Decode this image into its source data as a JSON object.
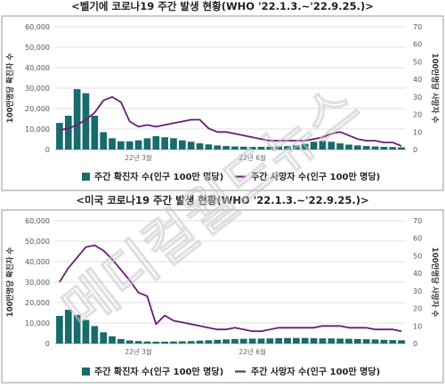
{
  "watermark": "메디컬월드뉴스",
  "chart_data": [
    {
      "type": "bar",
      "title": "<벨기에 코로나19 주간 발생 현황(WHO '22.1.3.~'22.9.25.)>",
      "ylabel": "100만명당 확진자 수",
      "y2label": "100만명당 사망자 수",
      "ylim": [
        0,
        60000
      ],
      "y2lim": [
        0,
        70
      ],
      "yticks": [
        "0",
        "10,000",
        "20,000",
        "30,000",
        "40,000",
        "50,000",
        "60,000"
      ],
      "y2ticks": [
        "0",
        "10",
        "20",
        "30",
        "40",
        "50",
        "60",
        "70"
      ],
      "xticks": [
        {
          "i": 9,
          "label": "22년 3월"
        },
        {
          "i": 22,
          "label": "22년 6월"
        }
      ],
      "grid": true,
      "legend_position": "bottom",
      "series": [
        {
          "name": "주간 확진자 수(인구 100만 명당)",
          "type": "bar",
          "color": "#1a6b6b",
          "values": [
            13000,
            16500,
            29500,
            27500,
            16500,
            8500,
            5500,
            4000,
            4000,
            4500,
            5500,
            6500,
            6000,
            5500,
            4500,
            3800,
            3000,
            2500,
            2000,
            1700,
            1500,
            1400,
            1300,
            1300,
            1400,
            1500,
            1700,
            2000,
            2800,
            3800,
            4200,
            3800,
            3000,
            2400,
            2000,
            1700,
            1500,
            1300,
            1200,
            1100
          ]
        },
        {
          "name": "주간 사망자 수(인구 100만 명당)",
          "type": "line",
          "color": "#6a1b7a",
          "values": [
            11,
            12,
            14,
            17,
            21,
            28,
            30,
            27,
            16,
            13,
            14,
            13,
            14,
            15,
            16,
            17,
            17,
            12,
            10,
            10,
            9,
            8,
            7,
            6,
            5,
            5,
            5,
            5,
            5,
            6,
            7,
            9,
            10,
            8,
            6,
            5,
            5,
            4,
            4,
            2
          ]
        }
      ]
    },
    {
      "type": "bar",
      "title": "<미국 코로나19 주간 발생 현황(WHO '22.1.3.~'22.9.25.)>",
      "ylabel": "100만명당 확진자 수",
      "y2label": "100만명당 사망자 수",
      "ylim": [
        0,
        60000
      ],
      "y2lim": [
        0,
        70
      ],
      "yticks": [
        "0",
        "10,000",
        "20,000",
        "30,000",
        "40,000",
        "50,000",
        "60,000"
      ],
      "y2ticks": [
        "0",
        "10",
        "20",
        "30",
        "40",
        "50",
        "60",
        "70"
      ],
      "xticks": [
        {
          "i": 9,
          "label": "22년 3월"
        },
        {
          "i": 22,
          "label": "22년 6월"
        }
      ],
      "grid": true,
      "legend_position": "bottom",
      "series": [
        {
          "name": "주간 확진자 수(인구 100만 명당)",
          "type": "bar",
          "color": "#1a6b6b",
          "values": [
            13500,
            16500,
            14000,
            11500,
            8500,
            5500,
            3500,
            2200,
            1500,
            1200,
            1000,
            900,
            900,
            1000,
            1100,
            1200,
            1400,
            1600,
            1800,
            2000,
            2200,
            2300,
            2400,
            2400,
            2500,
            2600,
            2700,
            2700,
            2700,
            2600,
            2500,
            2500,
            2400,
            2300,
            2200,
            2100,
            2000,
            1800,
            1700,
            1600
          ]
        },
        {
          "name": "주간 사망자 수(인구 100만 명당)",
          "type": "line",
          "color": "#6a1b7a",
          "values": [
            35,
            43,
            49,
            55,
            56,
            53,
            48,
            42,
            36,
            29,
            27,
            11,
            16,
            13,
            12,
            11,
            10,
            9,
            8,
            8,
            9,
            8,
            7,
            7,
            8,
            9,
            9,
            9,
            9,
            9,
            10,
            10,
            10,
            9,
            9,
            9,
            8,
            8,
            8,
            7
          ]
        }
      ]
    }
  ],
  "legend": {
    "bar_label": "주간 확진자 수(인구 100만 명당)",
    "line_label": "주간 사망자 수(인구 100만 명당)"
  }
}
